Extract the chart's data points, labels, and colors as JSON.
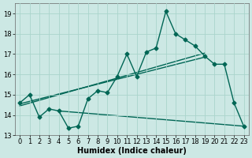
{
  "title": "",
  "xlabel": "Humidex (Indice chaleur)",
  "bg_color": "#cce8e4",
  "grid_color": "#aad4cc",
  "line_color": "#006655",
  "xlim": [
    -0.5,
    23.5
  ],
  "ylim": [
    13.0,
    19.5
  ],
  "yticks": [
    13,
    14,
    15,
    16,
    17,
    18,
    19
  ],
  "xticks": [
    0,
    1,
    2,
    3,
    4,
    5,
    6,
    7,
    8,
    9,
    10,
    11,
    12,
    13,
    14,
    15,
    16,
    17,
    18,
    19,
    20,
    21,
    22,
    23
  ],
  "line1_x": [
    0,
    1,
    2,
    3,
    4,
    5,
    6,
    7,
    8,
    9,
    10,
    11,
    12,
    13,
    14,
    15,
    16,
    17,
    18,
    19,
    20,
    21,
    22,
    23
  ],
  "line1_y": [
    14.6,
    15.0,
    13.9,
    14.3,
    14.2,
    13.35,
    13.45,
    14.8,
    15.2,
    15.1,
    15.9,
    17.0,
    15.9,
    17.1,
    17.3,
    19.1,
    18.0,
    17.7,
    17.4,
    16.9,
    16.5,
    16.5,
    14.6,
    13.45
  ],
  "line2_x": [
    0,
    19
  ],
  "line2_y": [
    14.55,
    16.85
  ],
  "line3_x": [
    0,
    19
  ],
  "line3_y": [
    14.45,
    17.05
  ],
  "line4_x": [
    4,
    23
  ],
  "line4_y": [
    14.2,
    13.45
  ],
  "marker": "D",
  "markersize": 2.5,
  "linewidth": 1.0,
  "xlabel_fontsize": 7,
  "tick_fontsize": 6
}
